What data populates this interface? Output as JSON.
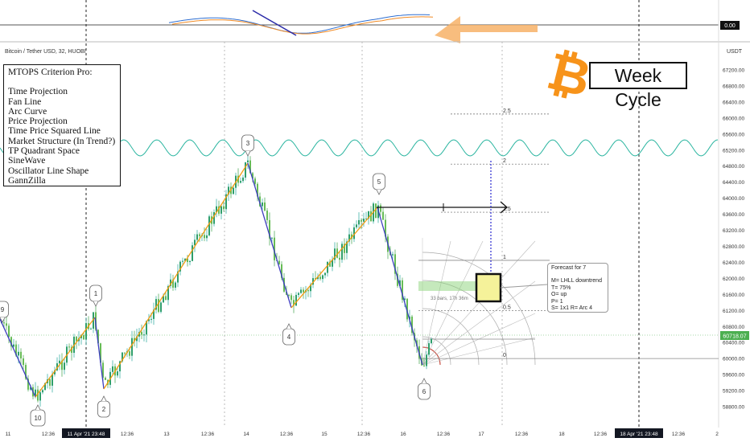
{
  "header": {
    "symbol": "Bitcoin / Tether USD, 32, HUOBI",
    "currency": "USDT"
  },
  "info_box": {
    "title": "MTOPS Criterion Pro:",
    "items": [
      "Time Projection",
      "Fan Line",
      "Arc Curve",
      "Price Projection",
      "Time Price Squared Line",
      "Market Structure (In Trend?)",
      "TP Quadrant Space",
      "SineWave",
      "Oscillator Line Shape",
      "GannZilla"
    ]
  },
  "week_cycle_label": "Week Cycle",
  "forecast": {
    "title": "Forecast for 7",
    "lines": [
      "M= LHLL downtrend",
      "T= 75%",
      "O= up",
      "P= 1",
      "S= 1x1 R= Arc 4"
    ]
  },
  "bars_label": "33 bars, 17h 36m",
  "oscillator": {
    "zero_label": "0.00"
  },
  "colors": {
    "up": "#26a69a",
    "down": "#4caf50",
    "orange_leg": "#f39c12",
    "blue_leg": "#3d3dbf",
    "sine": "#2bb5a0",
    "last_price": "#4caf50",
    "arrow": "#f7b267",
    "btc": "#f7931a"
  },
  "chart_data": {
    "type": "line",
    "ylim": [
      58600,
      67400
    ],
    "y_ticks": [
      58800,
      59200,
      59600,
      60000,
      60400,
      60800,
      61200,
      61600,
      62000,
      62400,
      62800,
      63200,
      63600,
      64000,
      64400,
      64800,
      65200,
      65600,
      66000,
      66400,
      66800,
      67200
    ],
    "x_ticks": [
      "11",
      "12:36",
      "11 Apr '21  23:48",
      "12:36",
      "13",
      "12:36",
      "14",
      "12:36",
      "15",
      "12:36",
      "16",
      "12:36",
      "17",
      "12:36",
      "18",
      "12:36",
      "18 Apr '21  23:48",
      "12:36",
      "2"
    ],
    "last_price": "60718.07",
    "swing_points": [
      {
        "label": "9",
        "price": 61100
      },
      {
        "label": "10",
        "price": 59300
      },
      {
        "label": "1",
        "price": 61100
      },
      {
        "label": "2",
        "price": 59400
      },
      {
        "label": "3",
        "price": 64800
      },
      {
        "label": "4",
        "price": 61300
      },
      {
        "label": "5",
        "price": 63700
      },
      {
        "label": "6",
        "price": 60000
      }
    ],
    "fib_levels": [
      {
        "label": "2.5",
        "price": 66100
      },
      {
        "label": "2",
        "price": 64850
      },
      {
        "label": "1.5",
        "price": 63650
      },
      {
        "label": "1",
        "price": 62450
      },
      {
        "label": "0.5",
        "price": 61200
      },
      {
        "label": "0",
        "price": 60000
      }
    ]
  }
}
